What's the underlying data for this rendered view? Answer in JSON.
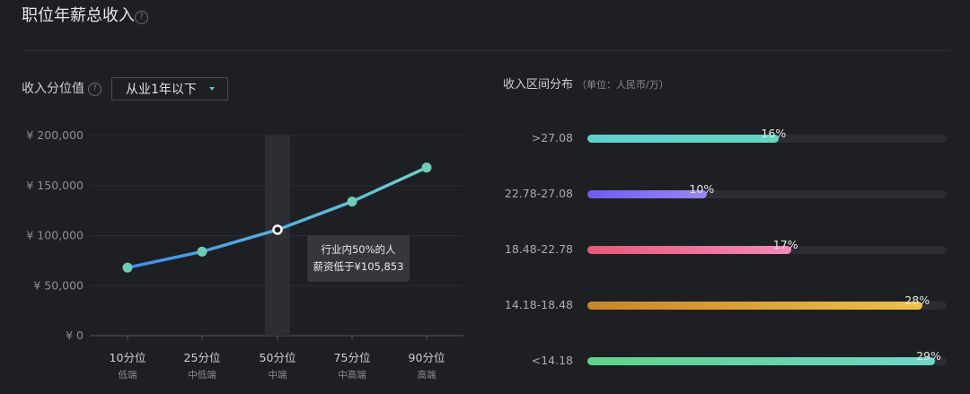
{
  "header": {
    "title": "职位年薪总收入",
    "help_icon": "question-circle-icon"
  },
  "percentile_panel": {
    "label": "收入分位值",
    "dropdown": {
      "selected": "从业1年以下"
    },
    "tooltip": {
      "line1": "行业内50%的人",
      "line2": "薪资低于¥105,853"
    }
  },
  "distribution_panel": {
    "title": "收入区间分布",
    "unit": "（单位：人民币/万）"
  },
  "chart_data": [
    {
      "type": "line",
      "categories": [
        "10分位",
        "25分位",
        "50分位",
        "75分位",
        "90分位"
      ],
      "sublabels": [
        "低端",
        "中低端",
        "中端",
        "中高端",
        "高端"
      ],
      "values": [
        68000,
        84000,
        105853,
        134000,
        168000
      ],
      "yticks": [
        "¥ 0",
        "¥ 50,000",
        "¥ 100,000",
        "¥ 150,000",
        "¥ 200,000"
      ],
      "ylim": [
        0,
        200000
      ],
      "highlight_index": 2,
      "colors": {
        "line_start": "#3f8ff0",
        "line_end": "#6ecfcc",
        "point": "#6ecbb8"
      }
    },
    {
      "type": "bar",
      "orientation": "horizontal",
      "categories": [
        ">27.08",
        "22.78-27.08",
        "18.48-22.78",
        "14.18-18.48",
        "<14.18"
      ],
      "values": [
        16,
        10,
        17,
        28,
        29
      ],
      "value_labels": [
        "16%",
        "10%",
        "17%",
        "28%",
        "29%"
      ],
      "xlim": [
        0,
        30
      ],
      "colors": [
        [
          "#5fd0cf",
          "#63d6c2"
        ],
        [
          "#6b5df0",
          "#9a86f5"
        ],
        [
          "#e8587a",
          "#f08ab8"
        ],
        [
          "#c6862a",
          "#f0c04a"
        ],
        [
          "#5fd38a",
          "#6fd6c8"
        ]
      ]
    }
  ]
}
